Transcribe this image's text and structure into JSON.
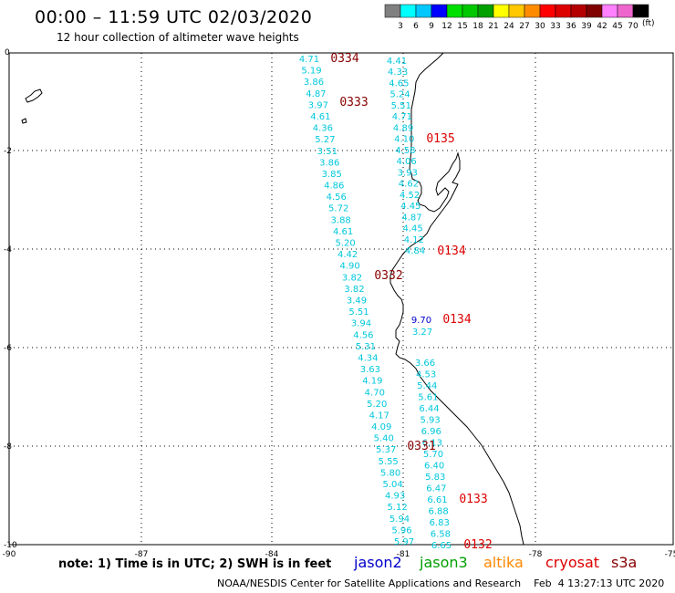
{
  "header": {
    "title": "00:00 – 11:59 UTC 02/03/2020",
    "subtitle": "12 hour collection of altimeter wave heights"
  },
  "colorbar": {
    "labels": [
      "3",
      "6",
      "9",
      "12",
      "15",
      "18",
      "21",
      "24",
      "27",
      "30",
      "33",
      "36",
      "39",
      "42",
      "45",
      "70"
    ],
    "units": "(ft)",
    "colors": [
      "#808080",
      "#00ffff",
      "#00c8ff",
      "#0000ff",
      "#00e000",
      "#00c800",
      "#00a000",
      "#ffff00",
      "#ffc800",
      "#ff8c00",
      "#ff0000",
      "#dd0000",
      "#b40000",
      "#800000",
      "#ff80ff",
      "#ee66cc",
      "#000000"
    ]
  },
  "axes": {
    "x_ticks": [
      "-90",
      "-87",
      "-84",
      "-81",
      "-78",
      "-75"
    ],
    "y_ticks": [
      "0",
      "-2",
      "-4",
      "-6",
      "-8",
      "-10"
    ]
  },
  "tracks": {
    "west_values": [
      "4.71",
      "5.19",
      "3.86",
      "4.87",
      "3.97",
      "4.61",
      "4.36",
      "5.27",
      "3.51",
      "3.86",
      "3.85",
      "4.86",
      "4.56",
      "5.72",
      "3.88",
      "4.61",
      "5.20",
      "4.42",
      "4.90",
      "3.82",
      "3.82",
      "3.49",
      "5.51",
      "3.94",
      "4.56",
      "5.31",
      "4.34",
      "3.63",
      "4.19",
      "4.70",
      "5.20",
      "4.17",
      "4.09",
      "5.40",
      "5.37",
      "5.55",
      "5.80",
      "5.04",
      "4.93",
      "5.12",
      "5.94",
      "5.96",
      "5.97"
    ],
    "north_values": [
      "4.41",
      "4.33",
      "4.65",
      "5.24",
      "5.51",
      "4.71",
      "4.89",
      "4.10",
      "4.58",
      "4.06",
      "3.93",
      "4.62",
      "4.52",
      "4.45",
      "4.87",
      "4.45",
      "4.12",
      "4.84"
    ],
    "mid_values": [
      "9.70",
      "3.27"
    ],
    "south_values": [
      "3.66",
      "4.53",
      "5.44",
      "5.61",
      "6.44",
      "5.93",
      "6.96",
      "6.13",
      "5.70",
      "6.40",
      "5.83",
      "6.47",
      "6.61",
      "6.88",
      "6.83",
      "6.58",
      "6.65"
    ]
  },
  "time_labels": [
    {
      "text": "0334",
      "color": "#880000"
    },
    {
      "text": "0333",
      "color": "#880000"
    },
    {
      "text": "0135",
      "color": "#dd0000"
    },
    {
      "text": "0134",
      "color": "#dd0000"
    },
    {
      "text": "0332",
      "color": "#880000"
    },
    {
      "text": "0134",
      "color": "#dd0000"
    },
    {
      "text": "0331",
      "color": "#880000"
    },
    {
      "text": "0133",
      "color": "#dd0000"
    },
    {
      "text": "0132",
      "color": "#dd0000"
    }
  ],
  "footer": {
    "note": "note: 1) Time is in UTC; 2) SWH is in feet",
    "satellites": {
      "jason2": "jason2",
      "jason3": "jason3",
      "altika": "altika",
      "cryosat": "cryosat",
      "s3a": "s3a"
    },
    "credit": "NOAA/NESDIS Center for Satellite Applications and Research    Feb  4 13:27:13 UTC 2020"
  }
}
